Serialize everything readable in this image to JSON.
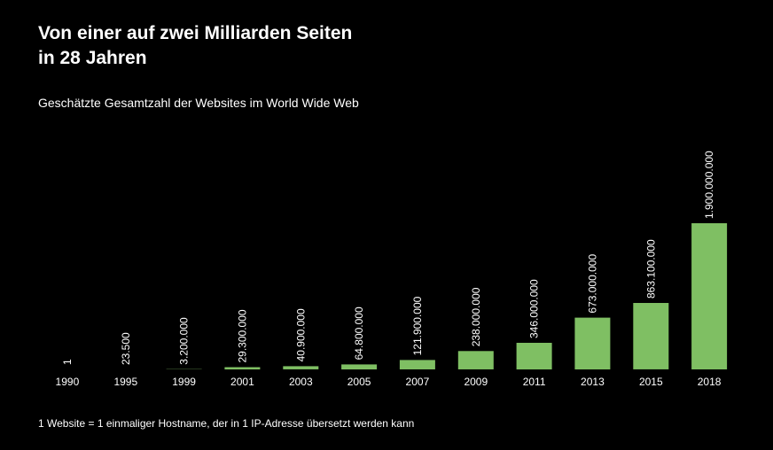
{
  "chart_data": {
    "type": "bar",
    "title": "Von einer auf zwei Milliarden Seiten\nin 28 Jahren",
    "subtitle": "Geschätzte Gesamtzahl der Websites im World Wide Web",
    "footnote": "1 Website = 1 einmaliger Hostname, der in 1 IP-Adresse übersetzt werden kann",
    "categories": [
      "1990",
      "1995",
      "1999",
      "2001",
      "2003",
      "2005",
      "2007",
      "2009",
      "2011",
      "2013",
      "2015",
      "2018"
    ],
    "values": [
      1,
      23500,
      3200000,
      29300000,
      40900000,
      64800000,
      121900000,
      238000000,
      346000000,
      673000000,
      863100000,
      1900000000
    ],
    "value_labels": [
      "1",
      "23.500",
      "3.200.000",
      "29.300.000",
      "40.900.000",
      "64.800.000",
      "121.900.000",
      "238.000.000",
      "346.000.000",
      "673.000.000",
      "863.100.000",
      "1.900.000.000"
    ],
    "ylim": [
      0,
      1900000000
    ],
    "grid": false,
    "colors": {
      "bar": "#7fbf63",
      "background": "#000000",
      "text": "#ffffff"
    }
  }
}
